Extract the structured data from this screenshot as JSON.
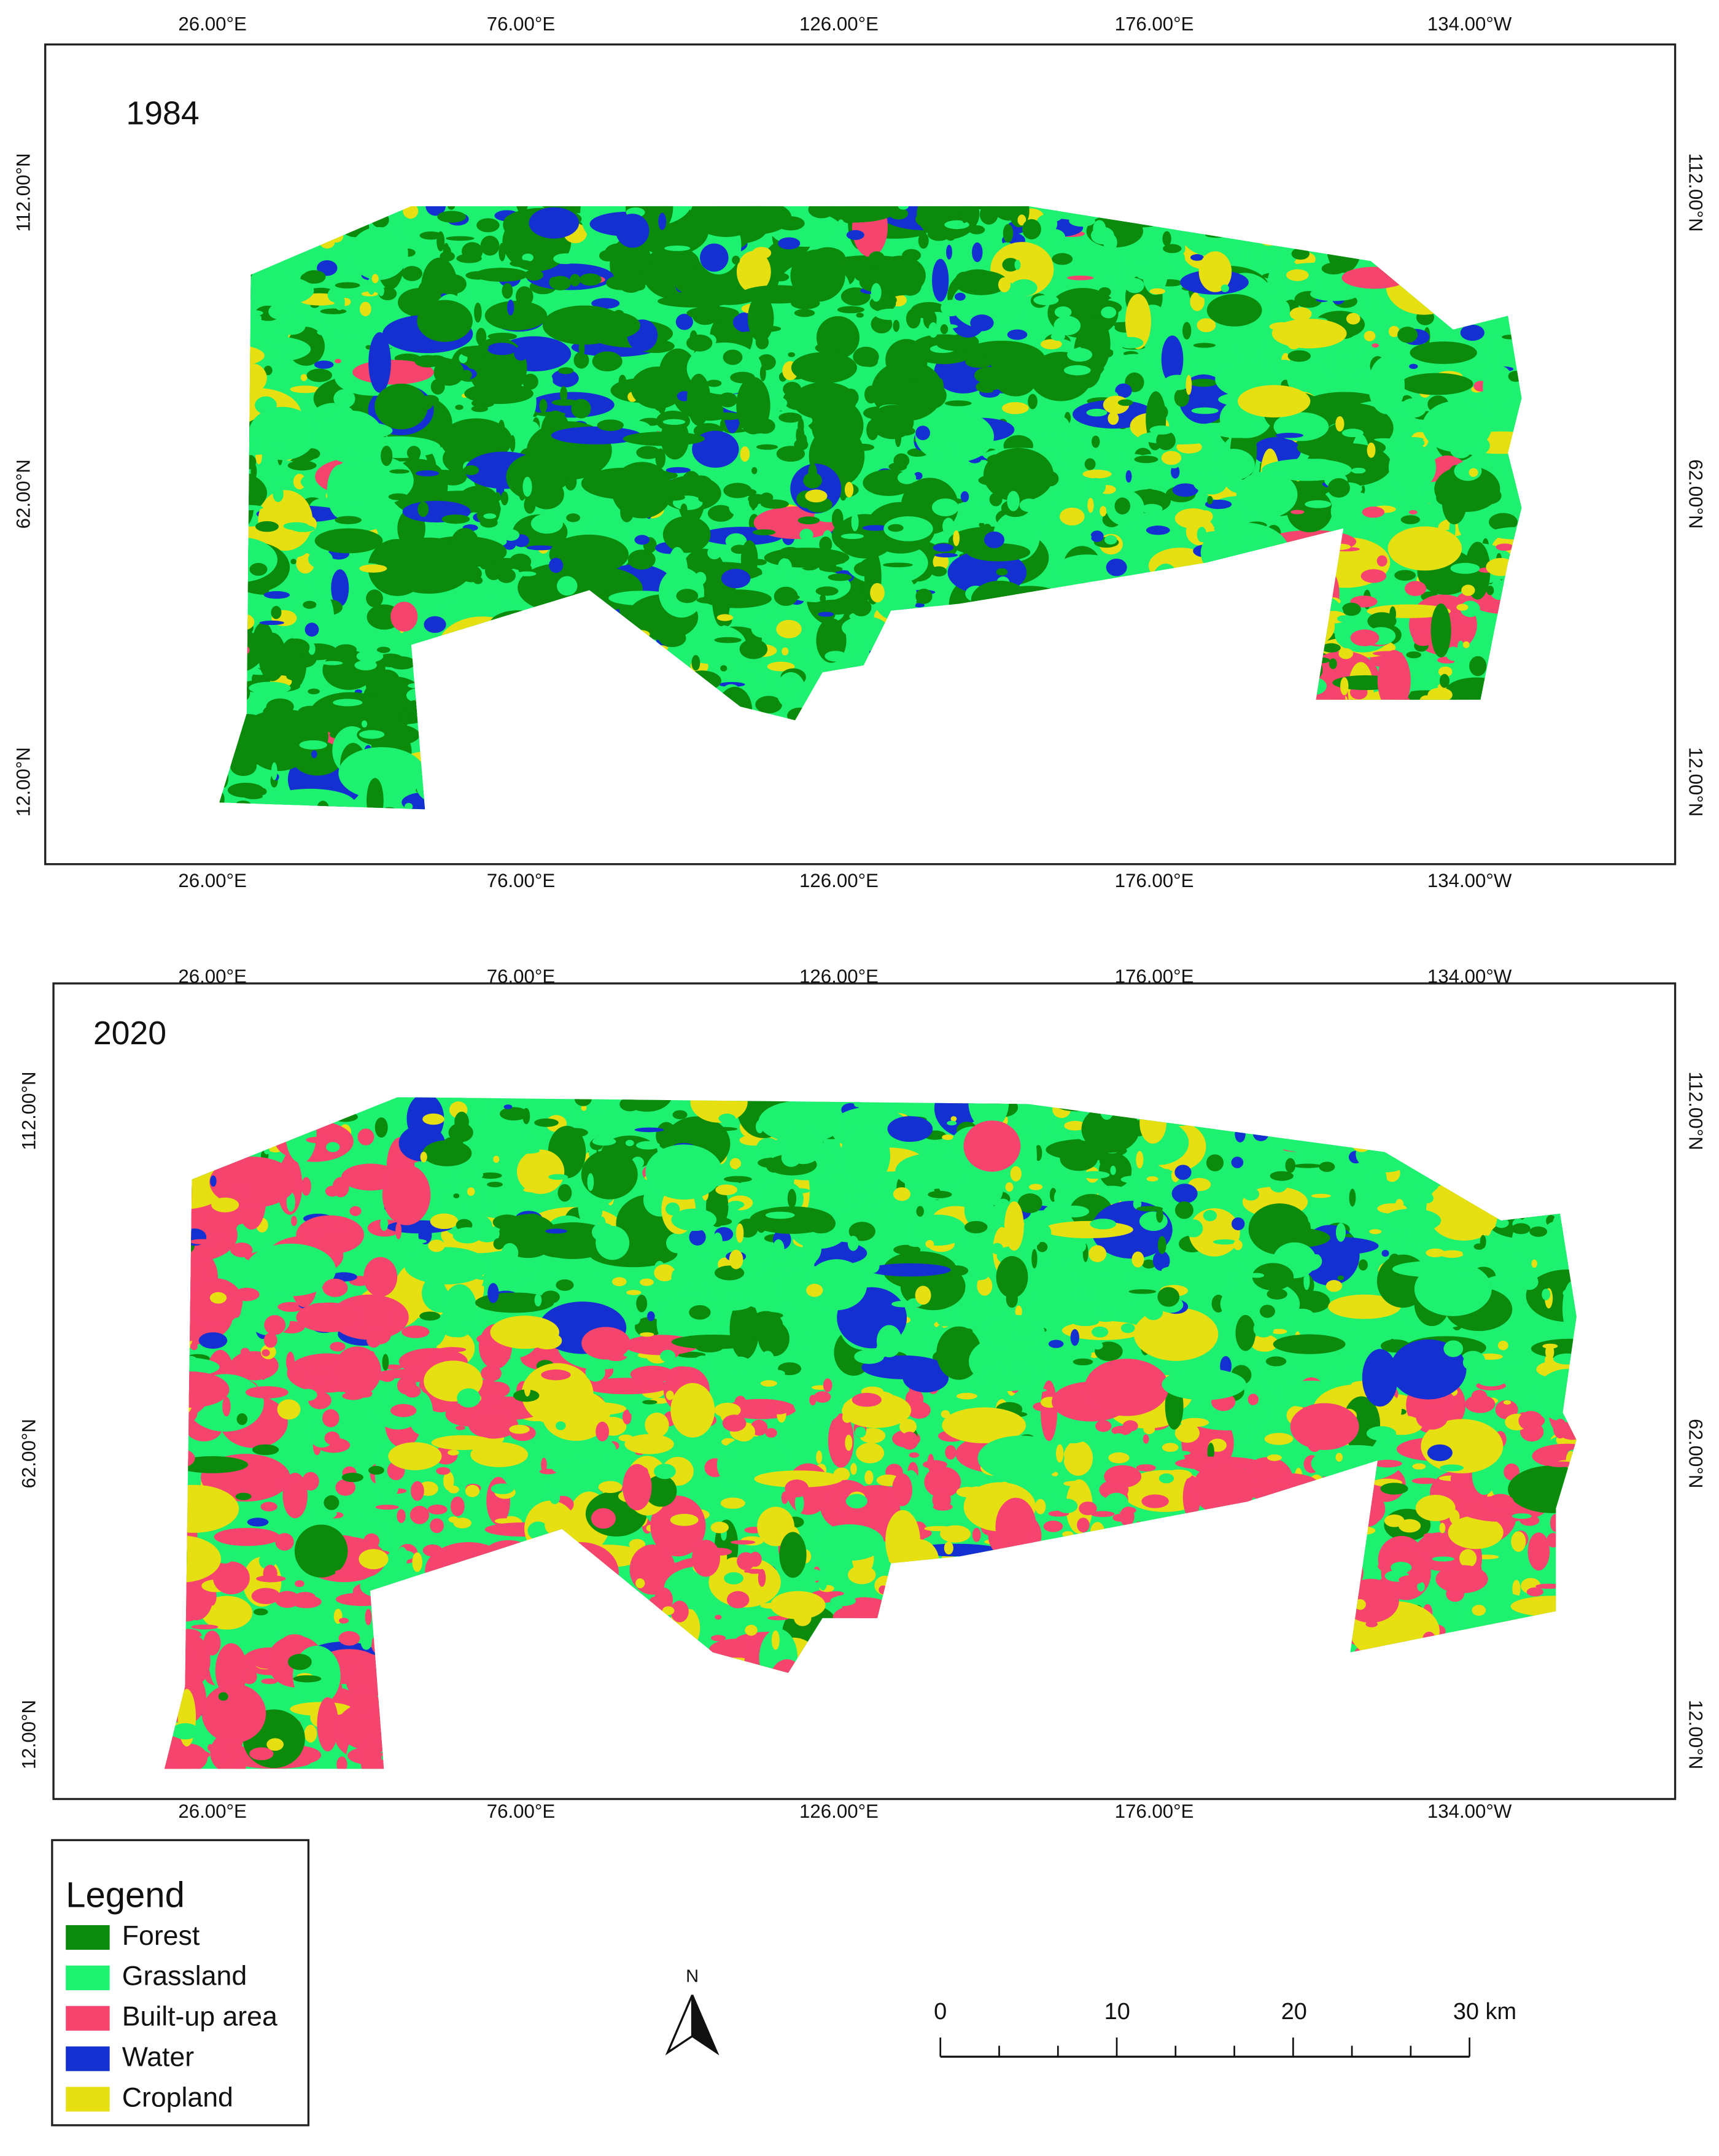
{
  "maps": [
    {
      "year": "1984",
      "top_labels": [
        "26.00°E",
        "76.00°E",
        "126.00°E",
        "176.00°E",
        "134.00°W"
      ],
      "bottom_labels": [
        "26.00°E",
        "76.00°E",
        "126.00°E",
        "176.00°E",
        "134.00°W"
      ],
      "left_labels": [
        "112.00°N",
        "62.00°N",
        "12.00°N"
      ],
      "right_labels": [
        "112.00°N",
        "62.00°N",
        "12.00°N"
      ]
    },
    {
      "year": "2020",
      "top_labels": [
        "26.00°E",
        "76.00°E",
        "126.00°E",
        "176.00°E",
        "134.00°W"
      ],
      "bottom_labels": [
        "26.00°E",
        "76.00°E",
        "126.00°E",
        "176.00°E",
        "134.00°W"
      ],
      "left_labels": [
        "112.00°N",
        "62.00°N",
        "12.00°N"
      ],
      "right_labels": [
        "112.00°N",
        "62.00°N",
        "12.00°N"
      ]
    }
  ],
  "legend": {
    "title": "Legend",
    "items": [
      {
        "label": "Forest",
        "color": "#0b8a0b"
      },
      {
        "label": "Grassland",
        "color": "#1ef070"
      },
      {
        "label": "Built-up area",
        "color": "#f5456f"
      },
      {
        "label": "Water",
        "color": "#1530d0"
      },
      {
        "label": "Cropland",
        "color": "#e6df12"
      }
    ]
  },
  "north_arrow": "N",
  "scale_bar": {
    "labels": [
      "0",
      "10",
      "20",
      "30 km"
    ]
  }
}
